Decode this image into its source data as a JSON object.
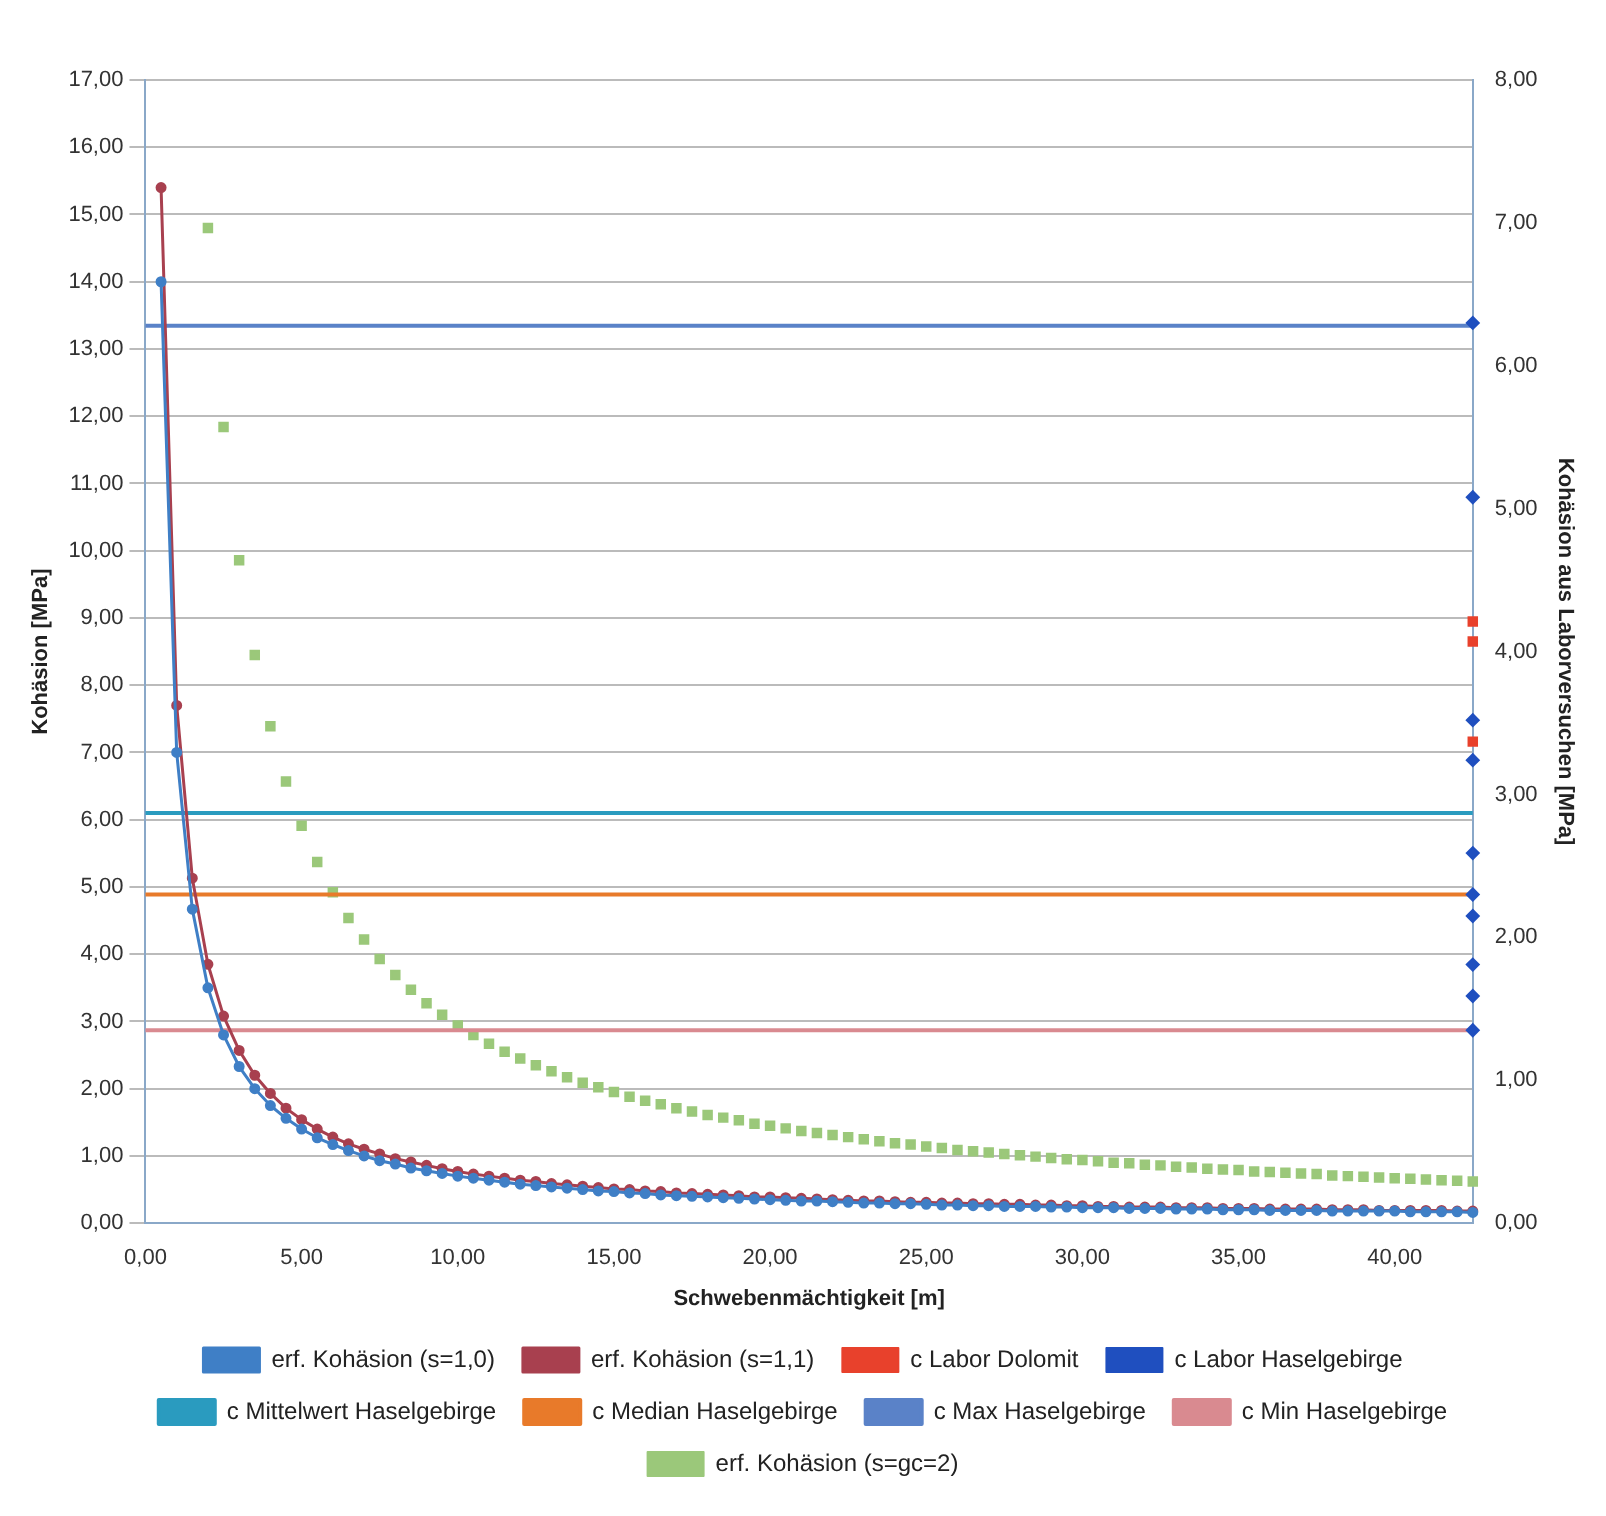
{
  "chart_data": {
    "type": "line",
    "xlabel": "Schwebenmächtigkeit [m]",
    "ylabel": "Kohäsion [MPa]",
    "y2label": "Kohäsion aus Laborversuchen [MPa]",
    "x": [
      0.5,
      1,
      1.5,
      2,
      2.5,
      3,
      3.5,
      4,
      4.5,
      5,
      5.5,
      6,
      6.5,
      7,
      7.5,
      8,
      8.5,
      9,
      9.5,
      10,
      10.5,
      11,
      11.5,
      12,
      12.5,
      13,
      13.5,
      14,
      14.5,
      15,
      15.5,
      16,
      16.5,
      17,
      17.5,
      18,
      18.5,
      19,
      19.5,
      20,
      20.5,
      21,
      21.5,
      22,
      22.5,
      23,
      23.5,
      24,
      24.5,
      25,
      25.5,
      26,
      26.5,
      27,
      27.5,
      28,
      28.5,
      29,
      29.5,
      30,
      30.5,
      31,
      31.5,
      32,
      32.5,
      33,
      33.5,
      34,
      34.5,
      35,
      35.5,
      36,
      36.5,
      37,
      37.5,
      38,
      38.5,
      39,
      39.5,
      40,
      40.5,
      41,
      41.5,
      42,
      42.5
    ],
    "series": [
      {
        "name": "erf. Kohäsion (s=1,0)",
        "color": "#3f7fc6",
        "marker": "circle",
        "values": [
          14.0,
          7.0,
          4.67,
          3.5,
          2.8,
          2.33,
          2.0,
          1.75,
          1.56,
          1.4,
          1.27,
          1.17,
          1.08,
          1.0,
          0.93,
          0.88,
          0.82,
          0.78,
          0.74,
          0.7,
          0.67,
          0.64,
          0.61,
          0.58,
          0.56,
          0.54,
          0.52,
          0.5,
          0.48,
          0.47,
          0.45,
          0.44,
          0.42,
          0.41,
          0.4,
          0.39,
          0.38,
          0.37,
          0.36,
          0.35,
          0.34,
          0.33,
          0.33,
          0.32,
          0.31,
          0.3,
          0.3,
          0.29,
          0.29,
          0.28,
          0.27,
          0.27,
          0.26,
          0.26,
          0.25,
          0.25,
          0.25,
          0.24,
          0.24,
          0.23,
          0.23,
          0.23,
          0.22,
          0.22,
          0.22,
          0.21,
          0.21,
          0.21,
          0.2,
          0.2,
          0.2,
          0.19,
          0.19,
          0.19,
          0.19,
          0.18,
          0.18,
          0.18,
          0.18,
          0.18,
          0.17,
          0.17,
          0.17,
          0.17,
          0.16
        ]
      },
      {
        "name": "erf. Kohäsion (s=1,1)",
        "color": "#a8404f",
        "marker": "circle",
        "values": [
          15.4,
          7.7,
          5.13,
          3.85,
          3.08,
          2.57,
          2.2,
          1.93,
          1.71,
          1.54,
          1.4,
          1.28,
          1.18,
          1.1,
          1.03,
          0.96,
          0.91,
          0.86,
          0.81,
          0.77,
          0.73,
          0.7,
          0.67,
          0.64,
          0.62,
          0.59,
          0.57,
          0.55,
          0.53,
          0.51,
          0.5,
          0.48,
          0.47,
          0.45,
          0.44,
          0.43,
          0.42,
          0.41,
          0.39,
          0.39,
          0.38,
          0.37,
          0.36,
          0.35,
          0.34,
          0.33,
          0.33,
          0.32,
          0.31,
          0.31,
          0.3,
          0.3,
          0.29,
          0.29,
          0.28,
          0.28,
          0.27,
          0.27,
          0.26,
          0.26,
          0.25,
          0.25,
          0.24,
          0.24,
          0.24,
          0.23,
          0.23,
          0.23,
          0.22,
          0.22,
          0.22,
          0.21,
          0.21,
          0.21,
          0.21,
          0.2,
          0.2,
          0.2,
          0.19,
          0.19,
          0.19,
          0.19,
          0.19,
          0.18,
          0.18
        ]
      },
      {
        "name": "c Labor Dolomit",
        "color": "#e8412c",
        "type": "scatter",
        "marker": "square",
        "axis": "y2",
        "x": [
          42.5,
          42.5,
          42.5
        ],
        "values": [
          4.21,
          4.07,
          3.37
        ]
      },
      {
        "name": "c Labor Haselgebirge",
        "color": "#1f4fbf",
        "type": "scatter",
        "marker": "diamond",
        "axis": "y2",
        "x": [
          42.5,
          42.5,
          42.5,
          42.5,
          42.5,
          42.5,
          42.5,
          42.5,
          42.5,
          42.5
        ],
        "values": [
          6.3,
          5.08,
          3.52,
          3.24,
          2.59,
          2.3,
          2.15,
          1.81,
          1.59,
          1.35
        ]
      },
      {
        "name": "c Mittelwert Haselgebirge",
        "color": "#2a9bbf",
        "type": "line",
        "marker": "none",
        "axis": "y2",
        "x": [
          0,
          42.5
        ],
        "values": [
          2.87,
          2.87
        ]
      },
      {
        "name": "c Median Haselgebirge",
        "color": "#e87a2a",
        "type": "line",
        "marker": "none",
        "axis": "y2",
        "x": [
          0,
          42.5
        ],
        "values": [
          2.3,
          2.3
        ]
      },
      {
        "name": "c Max Haselgebirge",
        "color": "#5a82c8",
        "type": "line",
        "marker": "none",
        "axis": "y2",
        "x": [
          0,
          42.5
        ],
        "values": [
          6.28,
          6.28
        ]
      },
      {
        "name": "c Min Haselgebirge",
        "color": "#d98a90",
        "type": "line",
        "marker": "none",
        "axis": "y2",
        "x": [
          0,
          42.5
        ],
        "values": [
          1.35,
          1.35
        ]
      },
      {
        "name": "erf. Kohäsion (s=gc=2)",
        "color": "#9bc87a",
        "type": "scatter",
        "marker": "square",
        "x": [
          2,
          2.5,
          3,
          3.5,
          4,
          4.5,
          5,
          5.5,
          6,
          6.5,
          7,
          7.5,
          8,
          8.5,
          9,
          9.5,
          10,
          10.5,
          11,
          11.5,
          12,
          12.5,
          13,
          13.5,
          14,
          14.5,
          15,
          15.5,
          16,
          16.5,
          17,
          17.5,
          18,
          18.5,
          19,
          19.5,
          20,
          20.5,
          21,
          21.5,
          22,
          22.5,
          23,
          23.5,
          24,
          24.5,
          25,
          25.5,
          26,
          26.5,
          27,
          27.5,
          28,
          28.5,
          29,
          29.5,
          30,
          30.5,
          31,
          31.5,
          32,
          32.5,
          33,
          33.5,
          34,
          34.5,
          35,
          35.5,
          36,
          36.5,
          37,
          37.5,
          38,
          38.5,
          39,
          39.5,
          40,
          40.5,
          41,
          41.5,
          42,
          42.5
        ],
        "values": [
          14.8,
          11.84,
          9.86,
          8.45,
          7.39,
          6.57,
          5.91,
          5.37,
          4.92,
          4.54,
          4.22,
          3.93,
          3.69,
          3.47,
          3.27,
          3.1,
          2.94,
          2.8,
          2.67,
          2.55,
          2.45,
          2.35,
          2.26,
          2.17,
          2.09,
          2.02,
          1.95,
          1.88,
          1.82,
          1.77,
          1.71,
          1.66,
          1.61,
          1.57,
          1.53,
          1.48,
          1.45,
          1.41,
          1.37,
          1.34,
          1.31,
          1.28,
          1.25,
          1.22,
          1.19,
          1.17,
          1.14,
          1.12,
          1.09,
          1.07,
          1.05,
          1.03,
          1.01,
          0.99,
          0.97,
          0.95,
          0.94,
          0.92,
          0.9,
          0.89,
          0.87,
          0.86,
          0.84,
          0.83,
          0.81,
          0.8,
          0.79,
          0.77,
          0.76,
          0.75,
          0.74,
          0.73,
          0.71,
          0.7,
          0.69,
          0.68,
          0.67,
          0.66,
          0.65,
          0.64,
          0.63,
          0.62
        ]
      }
    ],
    "xlim": [
      0,
      42.5
    ],
    "xticks": [
      {
        "value": 0,
        "label": "0,00"
      },
      {
        "value": 5,
        "label": "5,00"
      },
      {
        "value": 10,
        "label": "10,00"
      },
      {
        "value": 15,
        "label": "15,00"
      },
      {
        "value": 20,
        "label": "20,00"
      },
      {
        "value": 25,
        "label": "25,00"
      },
      {
        "value": 30,
        "label": "30,00"
      },
      {
        "value": 35,
        "label": "35,00"
      },
      {
        "value": 40,
        "label": "40,00"
      }
    ],
    "ylim": [
      0,
      17
    ],
    "yticks": [
      {
        "value": 0,
        "label": "0,00"
      },
      {
        "value": 1,
        "label": "1,00"
      },
      {
        "value": 2,
        "label": "2,00"
      },
      {
        "value": 3,
        "label": "3,00"
      },
      {
        "value": 4,
        "label": "4,00"
      },
      {
        "value": 5,
        "label": "5,00"
      },
      {
        "value": 6,
        "label": "6,00"
      },
      {
        "value": 7,
        "label": "7,00"
      },
      {
        "value": 8,
        "label": "8,00"
      },
      {
        "value": 9,
        "label": "9,00"
      },
      {
        "value": 10,
        "label": "10,00"
      },
      {
        "value": 11,
        "label": "11,00"
      },
      {
        "value": 12,
        "label": "12,00"
      },
      {
        "value": 13,
        "label": "13,00"
      },
      {
        "value": 14,
        "label": "14,00"
      },
      {
        "value": 15,
        "label": "15,00"
      },
      {
        "value": 16,
        "label": "16,00"
      },
      {
        "value": 17,
        "label": "17,00"
      }
    ],
    "y2lim": [
      0,
      8
    ],
    "y2ticks": [
      {
        "value": 0,
        "label": "0,00"
      },
      {
        "value": 1,
        "label": "1,00"
      },
      {
        "value": 2,
        "label": "2,00"
      },
      {
        "value": 3,
        "label": "3,00"
      },
      {
        "value": 4,
        "label": "4,00"
      },
      {
        "value": 5,
        "label": "5,00"
      },
      {
        "value": 6,
        "label": "6,00"
      },
      {
        "value": 7,
        "label": "7,00"
      },
      {
        "value": 8,
        "label": "8,00"
      }
    ],
    "grid": "y",
    "legend": "bottom"
  }
}
